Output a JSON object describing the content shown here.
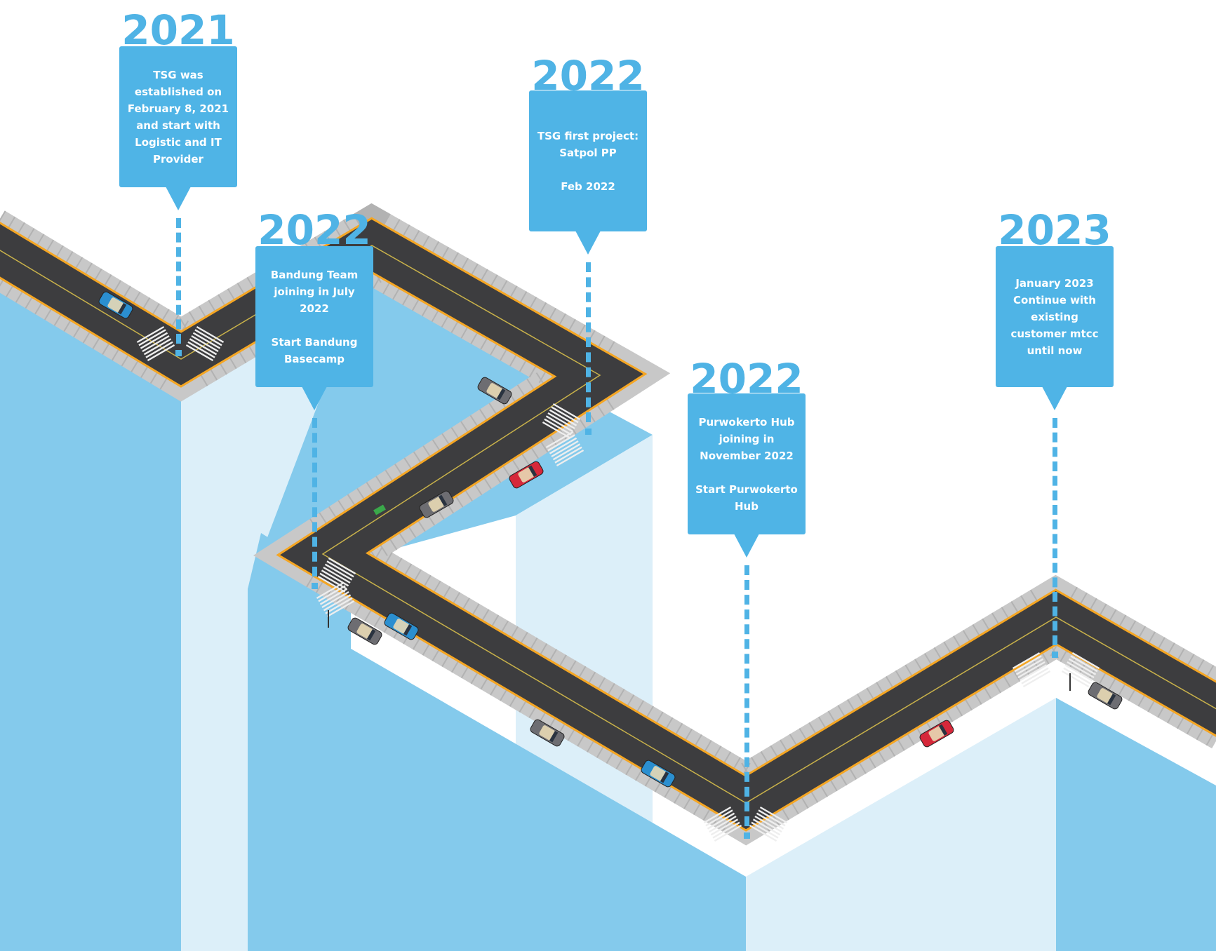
{
  "milestones": [
    {
      "year": "2021",
      "lines": [
        "TSG was",
        "established on",
        "February 8, 2021",
        "and start with",
        "Logistic and IT",
        "Provider"
      ]
    },
    {
      "year": "2022",
      "lines": [
        "Bandung Team",
        "joining in July",
        "2022",
        "",
        "Start Bandung",
        "Basecamp"
      ]
    },
    {
      "year": "2022",
      "lines": [
        "TSG first project:",
        "Satpol PP",
        "",
        "Feb 2022"
      ]
    },
    {
      "year": "2022",
      "lines": [
        "Purwokerto Hub",
        "joining in",
        "November 2022",
        "",
        "Start Purwokerto",
        "Hub"
      ]
    },
    {
      "year": "2023",
      "lines": [
        "January 2023",
        "Continue with",
        "existing",
        "customer mtcc",
        "until now"
      ]
    }
  ],
  "colors": {
    "accent": "#4fb3e5",
    "card": "#4fb4e6",
    "block_dark": "#84caec",
    "block_light": "#dceff9",
    "road": "#3d3d3f",
    "road_edge": "#f5a623",
    "sidewalk": "#c8c8c8",
    "car_blue": "#2b8fd0",
    "car_red": "#d6283a",
    "car_gray": "#6d6d72"
  }
}
